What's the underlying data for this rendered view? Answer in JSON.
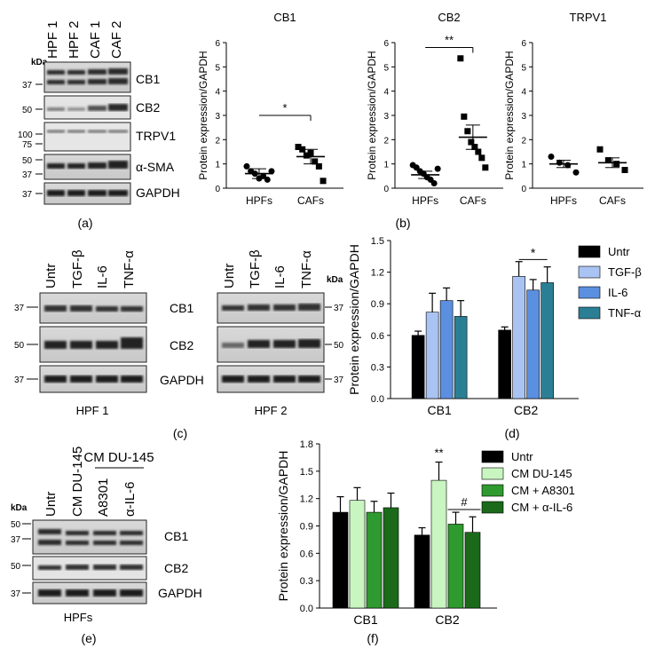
{
  "panel_letters": {
    "a": "(a)",
    "b": "(b)",
    "c": "(c)",
    "d": "(d)",
    "e": "(e)",
    "f": "(f)"
  },
  "blot_a": {
    "kda": "kDa",
    "lanes": [
      "HPF 1",
      "HPF 2",
      "CAF 1",
      "CAF 2"
    ],
    "rows": [
      {
        "label": "CB1",
        "markers": [
          "37"
        ]
      },
      {
        "label": "CB2",
        "markers": [
          "50"
        ]
      },
      {
        "label": "TRPV1",
        "markers": [
          "100",
          "75"
        ]
      },
      {
        "label": "α-SMA",
        "markers": [
          "50",
          "37"
        ]
      },
      {
        "label": "GAPDH",
        "markers": [
          "37"
        ]
      }
    ]
  },
  "blot_c": {
    "kda": "kDa",
    "lanes": [
      "Untr",
      "TGF-β",
      "IL-6",
      "TNF-α"
    ],
    "rows": [
      {
        "label": "CB1",
        "marker": "37"
      },
      {
        "label": "CB2",
        "marker": "50"
      },
      {
        "label": "GAPDH",
        "marker": "37"
      }
    ],
    "left_caption": "HPF 1",
    "right_caption": "HPF 2"
  },
  "blot_e": {
    "kda": "kDa",
    "lanes": [
      "Untr",
      "CM DU-145",
      "A8301",
      "α-IL-6"
    ],
    "group_label": "CM DU-145",
    "rows": [
      {
        "label": "CB1",
        "markers": [
          "50",
          "37"
        ]
      },
      {
        "label": "CB2",
        "markers": [
          "50"
        ]
      },
      {
        "label": "GAPDH",
        "markers": [
          "37"
        ]
      }
    ],
    "caption": "HPFs"
  },
  "chart_data": [
    {
      "id": "b-cb1",
      "type": "scatter",
      "title": "CB1",
      "ylabel": "Protein expression/GAPDH",
      "ylim": [
        0,
        6
      ],
      "yticks": [
        "0",
        "1",
        "2",
        "3",
        "4",
        "5",
        "6"
      ],
      "categories": [
        "HPFs",
        "CAFs"
      ],
      "points": [
        [
          0.9,
          0.7,
          0.6,
          0.4,
          0.5,
          0.35,
          0.7
        ],
        [
          1.7,
          1.6,
          1.35,
          1.45,
          1.1,
          0.9,
          0.3
        ]
      ],
      "means": [
        0.6,
        1.3
      ],
      "sem": [
        0.2,
        0.3
      ],
      "significance": [
        {
          "label": "*",
          "y": 3.0
        }
      ]
    },
    {
      "id": "b-cb2",
      "type": "scatter",
      "title": "CB2",
      "ylabel": "Protein expression/GAPDH",
      "ylim": [
        0,
        6
      ],
      "yticks": [
        "0",
        "1",
        "2",
        "3",
        "4",
        "5",
        "6"
      ],
      "categories": [
        "HPFs",
        "CAFs"
      ],
      "points": [
        [
          0.95,
          0.85,
          0.7,
          0.6,
          0.45,
          0.35,
          0.2,
          0.8
        ],
        [
          5.35,
          2.95,
          2.35,
          1.9,
          1.7,
          1.5,
          1.25,
          0.85
        ]
      ],
      "means": [
        0.55,
        2.1
      ],
      "sem": [
        0.15,
        0.5
      ],
      "significance": [
        {
          "label": "**",
          "y": 5.8
        }
      ]
    },
    {
      "id": "b-trpv1",
      "type": "scatter",
      "title": "TRPV1",
      "ylabel": "Protein expression/GAPDH",
      "ylim": [
        0,
        6
      ],
      "yticks": [
        "0",
        "1",
        "2",
        "3",
        "4",
        "5",
        "6"
      ],
      "categories": [
        "HPFs",
        "CAFs"
      ],
      "points": [
        [
          1.3,
          1.05,
          0.95,
          0.65
        ],
        [
          1.6,
          1.15,
          1.0,
          0.75
        ]
      ],
      "means": [
        1.0,
        1.05
      ],
      "sem": [
        0.15,
        0.2
      ],
      "significance": []
    },
    {
      "id": "d",
      "type": "bar",
      "ylabel": "Protein expression/GAPDH",
      "ylim": [
        0,
        1.5
      ],
      "yticks": [
        "0.0",
        "0.3",
        "0.6",
        "0.9",
        "1.2",
        "1.5"
      ],
      "categories": [
        "CB1",
        "CB2"
      ],
      "series": [
        {
          "name": "Untr",
          "color": "#000000",
          "values": [
            0.6,
            0.65
          ],
          "err": [
            0.04,
            0.03
          ]
        },
        {
          "name": "TGF-β",
          "color": "#a9c4f3",
          "values": [
            0.82,
            1.16
          ],
          "err": [
            0.18,
            0.14
          ]
        },
        {
          "name": "IL-6",
          "color": "#5b8fe0",
          "values": [
            0.93,
            1.03
          ],
          "err": [
            0.12,
            0.1
          ]
        },
        {
          "name": "TNF-α",
          "color": "#2b7f95",
          "values": [
            0.78,
            1.1
          ],
          "err": [
            0.15,
            0.15
          ]
        }
      ],
      "significance": [
        {
          "label": "*",
          "y": 1.32
        }
      ]
    },
    {
      "id": "f",
      "type": "bar",
      "ylabel": "Protein expression/GAPDH",
      "ylim": [
        0,
        1.8
      ],
      "yticks": [
        "0.0",
        "0.3",
        "0.6",
        "0.9",
        "1.2",
        "1.5",
        "1.8"
      ],
      "categories": [
        "CB1",
        "CB2"
      ],
      "series": [
        {
          "name": "Untr",
          "color": "#000000",
          "values": [
            1.05,
            0.8
          ],
          "err": [
            0.17,
            0.08
          ]
        },
        {
          "name": "CM DU-145",
          "color": "#c8f5c0",
          "values": [
            1.18,
            1.4
          ],
          "err": [
            0.14,
            0.2
          ]
        },
        {
          "name": "CM + A8301",
          "color": "#2f9a2f",
          "values": [
            1.05,
            0.92
          ],
          "err": [
            0.12,
            0.13
          ]
        },
        {
          "name": "CM + α-IL-6",
          "color": "#1a6a1a",
          "values": [
            1.1,
            0.83
          ],
          "err": [
            0.16,
            0.17
          ]
        }
      ],
      "significance": [
        {
          "label": "**",
          "y": 1.66
        },
        {
          "label": "#",
          "y": 1.08
        }
      ]
    }
  ]
}
